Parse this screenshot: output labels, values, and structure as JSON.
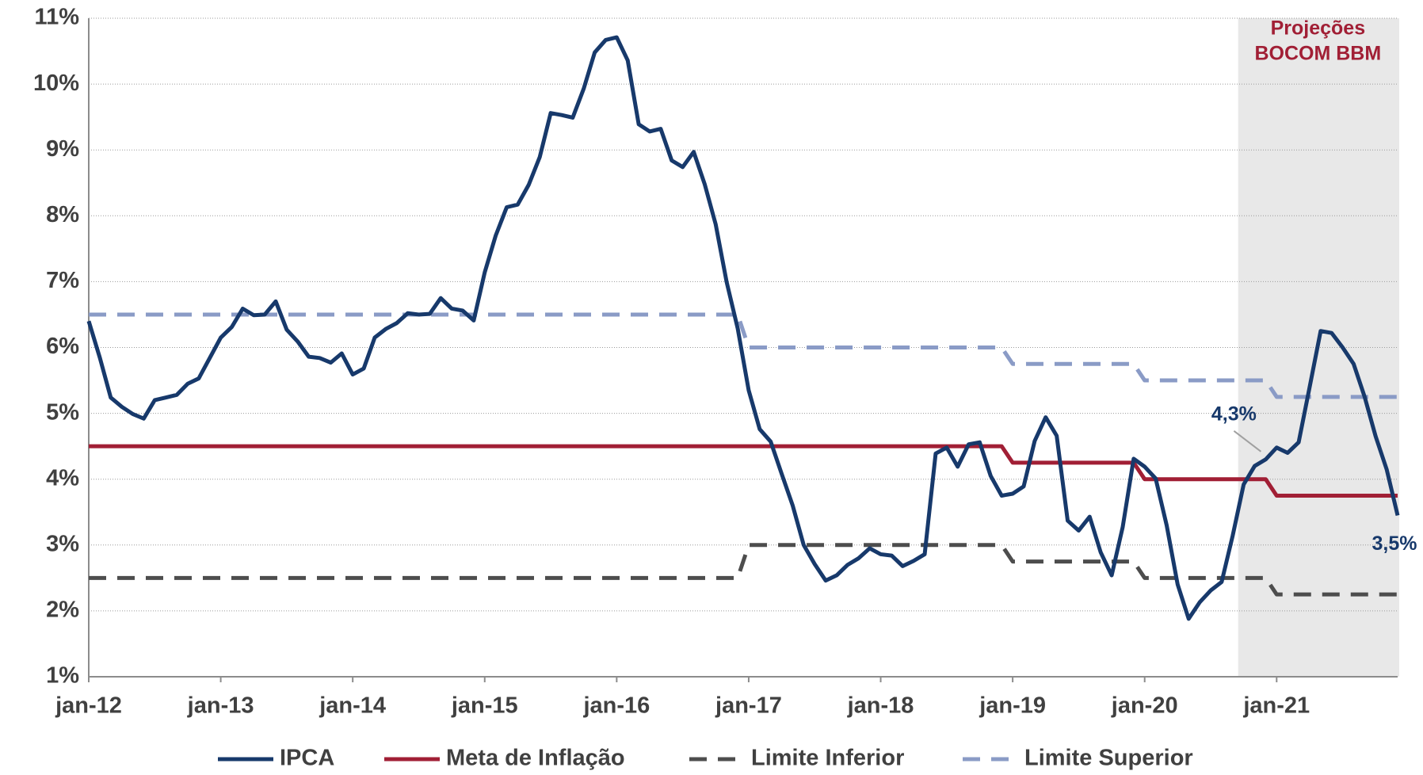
{
  "chart_data": {
    "type": "line",
    "categories": [
      "jan-12",
      null,
      null,
      null,
      null,
      null,
      null,
      null,
      null,
      null,
      null,
      null,
      "jan-13",
      null,
      null,
      null,
      null,
      null,
      null,
      null,
      null,
      null,
      null,
      null,
      "jan-14",
      null,
      null,
      null,
      null,
      null,
      null,
      null,
      null,
      null,
      null,
      null,
      "jan-15",
      null,
      null,
      null,
      null,
      null,
      null,
      null,
      null,
      null,
      null,
      null,
      "jan-16",
      null,
      null,
      null,
      null,
      null,
      null,
      null,
      null,
      null,
      null,
      null,
      "jan-17",
      null,
      null,
      null,
      null,
      null,
      null,
      null,
      null,
      null,
      null,
      null,
      "jan-18",
      null,
      null,
      null,
      null,
      null,
      null,
      null,
      null,
      null,
      null,
      null,
      "jan-19",
      null,
      null,
      null,
      null,
      null,
      null,
      null,
      null,
      null,
      null,
      null,
      "jan-20",
      null,
      null,
      null,
      null,
      null,
      null,
      null,
      null,
      null,
      null,
      null,
      "jan-21",
      null,
      null,
      null,
      null,
      null,
      null,
      null,
      null,
      null,
      null,
      null
    ],
    "series": [
      {
        "name": "IPCA",
        "color": "#17396b",
        "dash": false,
        "values": [
          6.4,
          5.85,
          5.24,
          5.1,
          4.99,
          4.92,
          5.2,
          5.24,
          5.28,
          5.45,
          5.53,
          5.84,
          6.15,
          6.31,
          6.59,
          6.49,
          6.5,
          6.7,
          6.27,
          6.09,
          5.86,
          5.84,
          5.77,
          5.91,
          5.59,
          5.68,
          6.15,
          6.28,
          6.37,
          6.52,
          6.5,
          6.51,
          6.75,
          6.59,
          6.56,
          6.41,
          7.14,
          7.7,
          8.13,
          8.17,
          8.47,
          8.89,
          9.56,
          9.53,
          9.49,
          9.93,
          10.48,
          10.67,
          10.71,
          10.36,
          9.39,
          9.28,
          9.32,
          8.84,
          8.74,
          8.97,
          8.48,
          7.87,
          6.99,
          6.29,
          5.35,
          4.76,
          4.57,
          4.08,
          3.6,
          3.0,
          2.71,
          2.46,
          2.54,
          2.7,
          2.8,
          2.95,
          2.86,
          2.84,
          2.68,
          2.76,
          2.86,
          4.39,
          4.48,
          4.19,
          4.53,
          4.56,
          4.05,
          3.75,
          3.78,
          3.89,
          4.58,
          4.94,
          4.66,
          3.37,
          3.22,
          3.43,
          2.89,
          2.54,
          3.27,
          4.31,
          4.19,
          4.01,
          3.3,
          2.4,
          1.88,
          2.13,
          2.31,
          2.44,
          3.14,
          3.92,
          4.2,
          4.3,
          4.48,
          4.4,
          4.56,
          5.4,
          6.25,
          6.22,
          6.0,
          5.75,
          5.25,
          4.65,
          4.15,
          3.45
        ],
        "value_labels": [
          null,
          null,
          null,
          null,
          null,
          null,
          null,
          null,
          null,
          null,
          null,
          null,
          null,
          null,
          null,
          null,
          null,
          null,
          null,
          null,
          null,
          null,
          null,
          null,
          null,
          null,
          null,
          null,
          null,
          null,
          null,
          null,
          null,
          null,
          null,
          null,
          null,
          null,
          null,
          null,
          null,
          null,
          null,
          null,
          null,
          null,
          null,
          null,
          null,
          null,
          null,
          null,
          null,
          null,
          null,
          null,
          null,
          null,
          null,
          null,
          null,
          null,
          null,
          null,
          null,
          null,
          null,
          null,
          null,
          null,
          null,
          null,
          null,
          null,
          null,
          null,
          null,
          null,
          null,
          null,
          null,
          null,
          null,
          null,
          null,
          null,
          null,
          null,
          null,
          null,
          null,
          null,
          null,
          null,
          null,
          null,
          null,
          null,
          null,
          null,
          null,
          null,
          null,
          null,
          null,
          null,
          null,
          "4,3%",
          null,
          null,
          null,
          null,
          null,
          null,
          null,
          null,
          null,
          null,
          null,
          "3,5%"
        ]
      },
      {
        "name": "Meta de Inflação",
        "color": "#a11f35",
        "dash": false,
        "values": [
          4.5,
          4.5,
          4.5,
          4.5,
          4.5,
          4.5,
          4.5,
          4.5,
          4.5,
          4.5,
          4.5,
          4.5,
          4.5,
          4.5,
          4.5,
          4.5,
          4.5,
          4.5,
          4.5,
          4.5,
          4.5,
          4.5,
          4.5,
          4.5,
          4.5,
          4.5,
          4.5,
          4.5,
          4.5,
          4.5,
          4.5,
          4.5,
          4.5,
          4.5,
          4.5,
          4.5,
          4.5,
          4.5,
          4.5,
          4.5,
          4.5,
          4.5,
          4.5,
          4.5,
          4.5,
          4.5,
          4.5,
          4.5,
          4.5,
          4.5,
          4.5,
          4.5,
          4.5,
          4.5,
          4.5,
          4.5,
          4.5,
          4.5,
          4.5,
          4.5,
          4.5,
          4.5,
          4.5,
          4.5,
          4.5,
          4.5,
          4.5,
          4.5,
          4.5,
          4.5,
          4.5,
          4.5,
          4.5,
          4.5,
          4.5,
          4.5,
          4.5,
          4.5,
          4.5,
          4.5,
          4.5,
          4.5,
          4.5,
          4.5,
          4.25,
          4.25,
          4.25,
          4.25,
          4.25,
          4.25,
          4.25,
          4.25,
          4.25,
          4.25,
          4.25,
          4.25,
          4.0,
          4.0,
          4.0,
          4.0,
          4.0,
          4.0,
          4.0,
          4.0,
          4.0,
          4.0,
          4.0,
          4.0,
          3.75,
          3.75,
          3.75,
          3.75,
          3.75,
          3.75,
          3.75,
          3.75,
          3.75,
          3.75,
          3.75,
          3.75
        ]
      },
      {
        "name": "Limite Inferior",
        "color": "#4d4d4d",
        "dash": true,
        "values": [
          2.5,
          2.5,
          2.5,
          2.5,
          2.5,
          2.5,
          2.5,
          2.5,
          2.5,
          2.5,
          2.5,
          2.5,
          2.5,
          2.5,
          2.5,
          2.5,
          2.5,
          2.5,
          2.5,
          2.5,
          2.5,
          2.5,
          2.5,
          2.5,
          2.5,
          2.5,
          2.5,
          2.5,
          2.5,
          2.5,
          2.5,
          2.5,
          2.5,
          2.5,
          2.5,
          2.5,
          2.5,
          2.5,
          2.5,
          2.5,
          2.5,
          2.5,
          2.5,
          2.5,
          2.5,
          2.5,
          2.5,
          2.5,
          2.5,
          2.5,
          2.5,
          2.5,
          2.5,
          2.5,
          2.5,
          2.5,
          2.5,
          2.5,
          2.5,
          2.5,
          3.0,
          3.0,
          3.0,
          3.0,
          3.0,
          3.0,
          3.0,
          3.0,
          3.0,
          3.0,
          3.0,
          3.0,
          3.0,
          3.0,
          3.0,
          3.0,
          3.0,
          3.0,
          3.0,
          3.0,
          3.0,
          3.0,
          3.0,
          3.0,
          2.75,
          2.75,
          2.75,
          2.75,
          2.75,
          2.75,
          2.75,
          2.75,
          2.75,
          2.75,
          2.75,
          2.75,
          2.5,
          2.5,
          2.5,
          2.5,
          2.5,
          2.5,
          2.5,
          2.5,
          2.5,
          2.5,
          2.5,
          2.5,
          2.25,
          2.25,
          2.25,
          2.25,
          2.25,
          2.25,
          2.25,
          2.25,
          2.25,
          2.25,
          2.25,
          2.25
        ]
      },
      {
        "name": "Limite Superior",
        "color": "#8a9bc6",
        "dash": true,
        "values": [
          6.5,
          6.5,
          6.5,
          6.5,
          6.5,
          6.5,
          6.5,
          6.5,
          6.5,
          6.5,
          6.5,
          6.5,
          6.5,
          6.5,
          6.5,
          6.5,
          6.5,
          6.5,
          6.5,
          6.5,
          6.5,
          6.5,
          6.5,
          6.5,
          6.5,
          6.5,
          6.5,
          6.5,
          6.5,
          6.5,
          6.5,
          6.5,
          6.5,
          6.5,
          6.5,
          6.5,
          6.5,
          6.5,
          6.5,
          6.5,
          6.5,
          6.5,
          6.5,
          6.5,
          6.5,
          6.5,
          6.5,
          6.5,
          6.5,
          6.5,
          6.5,
          6.5,
          6.5,
          6.5,
          6.5,
          6.5,
          6.5,
          6.5,
          6.5,
          6.5,
          6.0,
          6.0,
          6.0,
          6.0,
          6.0,
          6.0,
          6.0,
          6.0,
          6.0,
          6.0,
          6.0,
          6.0,
          6.0,
          6.0,
          6.0,
          6.0,
          6.0,
          6.0,
          6.0,
          6.0,
          6.0,
          6.0,
          6.0,
          6.0,
          5.75,
          5.75,
          5.75,
          5.75,
          5.75,
          5.75,
          5.75,
          5.75,
          5.75,
          5.75,
          5.75,
          5.75,
          5.5,
          5.5,
          5.5,
          5.5,
          5.5,
          5.5,
          5.5,
          5.5,
          5.5,
          5.5,
          5.5,
          5.5,
          5.25,
          5.25,
          5.25,
          5.25,
          5.25,
          5.25,
          5.25,
          5.25,
          5.25,
          5.25,
          5.25,
          5.25
        ]
      }
    ],
    "ylim": [
      1,
      11
    ],
    "yticks": [
      {
        "value": 1,
        "label": "1%"
      },
      {
        "value": 2,
        "label": "2%"
      },
      {
        "value": 3,
        "label": "3%"
      },
      {
        "value": 4,
        "label": "4%"
      },
      {
        "value": 5,
        "label": "5%"
      },
      {
        "value": 6,
        "label": "6%"
      },
      {
        "value": 7,
        "label": "7%"
      },
      {
        "value": 8,
        "label": "8%"
      },
      {
        "value": 9,
        "label": "9%"
      },
      {
        "value": 10,
        "label": "10%"
      },
      {
        "value": 11,
        "label": "11%"
      }
    ],
    "grid": true,
    "legend": "bottom",
    "shaded_region": {
      "from_index": 105,
      "label_lines": [
        "Projeções",
        "BOCOM BBM"
      ],
      "color": "#e8e8e8",
      "label_color": "#a11f35"
    }
  }
}
